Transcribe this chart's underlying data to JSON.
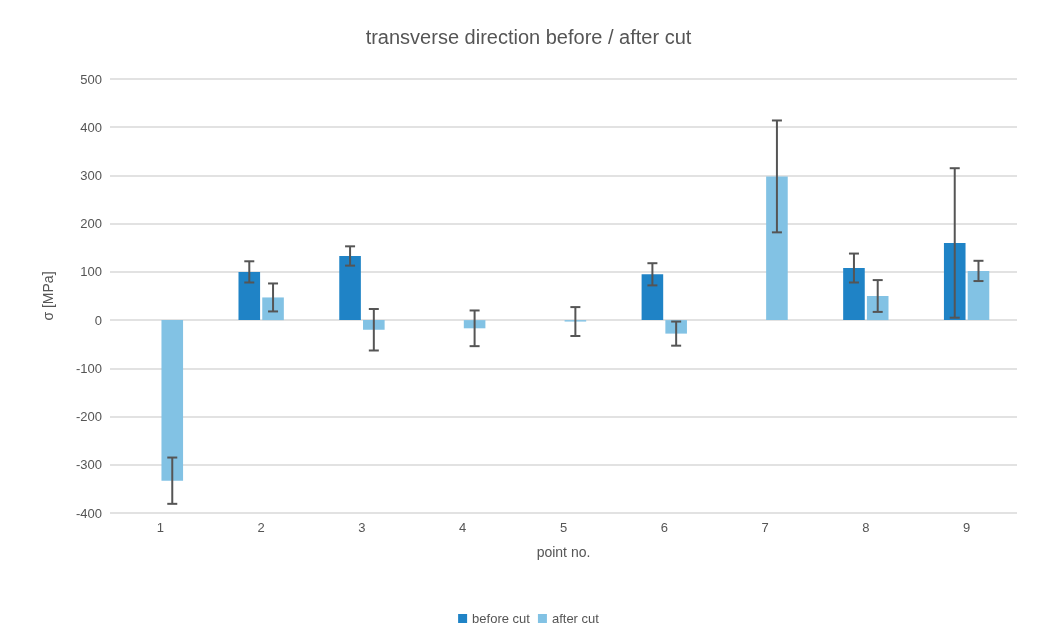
{
  "chart_data": {
    "type": "bar",
    "title": "transverse direction before / after cut",
    "xlabel": "point no.",
    "ylabel": "σ [MPa]",
    "categories": [
      "1",
      "2",
      "3",
      "4",
      "5",
      "6",
      "7",
      "8",
      "9"
    ],
    "series": [
      {
        "name": "before cut",
        "color": "#1f83c6",
        "values": [
          null,
          100,
          133,
          null,
          null,
          95,
          null,
          108,
          160
        ],
        "errors": [
          null,
          22,
          20,
          null,
          null,
          23,
          null,
          30,
          155
        ]
      },
      {
        "name": "after cut",
        "color": "#82c2e4",
        "values": [
          -333,
          47,
          -20,
          -17,
          -3,
          -28,
          298,
          50,
          102
        ],
        "errors": [
          48,
          29,
          43,
          37,
          30,
          25,
          116,
          33,
          21
        ]
      }
    ],
    "ylim": [
      -400,
      500
    ],
    "yticks": [
      -400,
      -300,
      -200,
      -100,
      0,
      100,
      200,
      300,
      400,
      500
    ],
    "grid": "y",
    "legend": "bottom"
  }
}
